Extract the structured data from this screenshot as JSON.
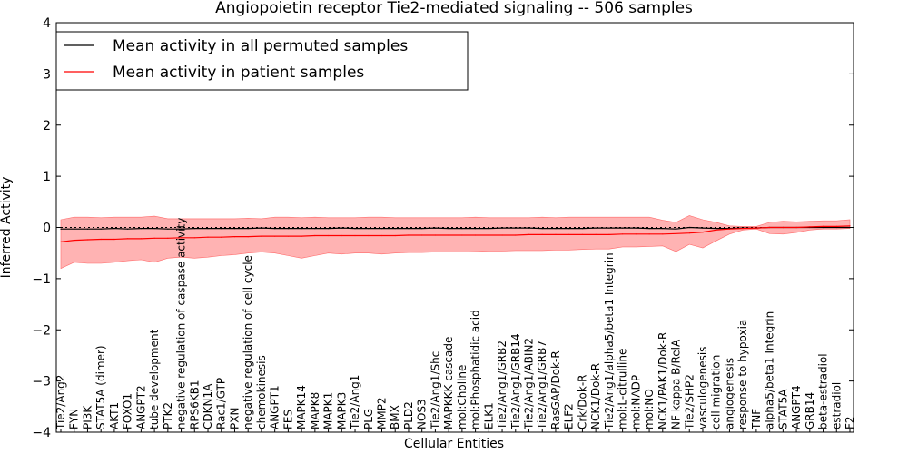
{
  "chart_data": {
    "type": "line",
    "title": "Angiopoietin receptor Tie2-mediated signaling -- 506 samples",
    "xlabel": "Cellular Entities",
    "ylabel": "Inferred Activity",
    "ylim": [
      -4,
      4
    ],
    "yticks": [
      "−4",
      "−3",
      "−2",
      "−1",
      "0",
      "1",
      "2",
      "3",
      "4"
    ],
    "colors": {
      "permuted": "#000000",
      "patient": "#ff0000",
      "band": "#ff9999"
    },
    "legend": {
      "position": "top-left",
      "permuted_label": "Mean activity in all permuted samples",
      "patient_label": "Mean activity in patient samples"
    },
    "categories": [
      "Tie2/Ang2",
      "FYN",
      "PI3K",
      "STAT5A (dimer)",
      "AKT1",
      "FOXO1",
      "ANGPT2",
      "tube development",
      "PTK2",
      "negative regulation of caspase activity",
      "RPS6KB1",
      "CDKN1A",
      "Rac1/GTP",
      "PXN",
      "negative regulation of cell cycle",
      "chemokinesis",
      "ANGPT1",
      "FES",
      "MAPK14",
      "MAPK8",
      "MAPK1",
      "MAPK3",
      "Tie2/Ang1",
      "PLG",
      "MMP2",
      "BMX",
      "PLD2",
      "NOS3",
      "Tie2/Ang1/Shc",
      "MAPKKK cascade",
      "mol:Choline",
      "mol:Phosphatidic acid",
      "ELK1",
      "Tie2/Ang1/GRB2",
      "Tie2/Ang1/GRB14",
      "Tie2/Ang1/ABIN2",
      "Tie2/Ang1/GRB7",
      "RasGAP/Dok-R",
      "ELF2",
      "Crk/Dok-R",
      "NCK1/Dok-R",
      "Tie2/Ang1/alpha5/beta1 Integrin",
      "mol:L-citrulline",
      "mol:NADP",
      "mol:NO",
      "NCK1/PAK1/Dok-R",
      "NF kappa B/RelA",
      "Tie2/SHP2",
      "vasculogenesis",
      "cell migration",
      "angiogenesis",
      "response to hypoxia",
      "TNF",
      "alpha5/beta1 Integrin",
      "STAT5A",
      "ANGPT4",
      "GRB14",
      "beta-estradiol",
      "estradiol",
      "F2"
    ],
    "series": [
      {
        "name": "Mean activity in all permuted samples",
        "values": [
          -0.03,
          -0.03,
          -0.03,
          -0.03,
          -0.02,
          -0.03,
          -0.02,
          -0.02,
          -0.03,
          -0.03,
          -0.02,
          -0.02,
          -0.02,
          -0.02,
          -0.02,
          -0.01,
          -0.02,
          -0.02,
          -0.02,
          -0.02,
          -0.02,
          -0.01,
          -0.02,
          -0.02,
          -0.02,
          -0.02,
          -0.02,
          -0.02,
          -0.01,
          -0.02,
          -0.02,
          -0.02,
          -0.02,
          -0.01,
          -0.01,
          -0.01,
          -0.02,
          -0.02,
          -0.02,
          -0.02,
          -0.01,
          -0.01,
          -0.01,
          -0.01,
          -0.02,
          -0.02,
          -0.03,
          0.0,
          -0.01,
          -0.02,
          -0.02,
          -0.01,
          -0.01,
          0.0,
          0.0,
          0.0,
          0.0,
          0.0,
          0.0,
          0.0
        ]
      },
      {
        "name": "Mean activity in patient samples",
        "values": [
          -0.28,
          -0.25,
          -0.24,
          -0.23,
          -0.23,
          -0.22,
          -0.22,
          -0.21,
          -0.21,
          -0.2,
          -0.2,
          -0.19,
          -0.19,
          -0.18,
          -0.18,
          -0.17,
          -0.17,
          -0.17,
          -0.17,
          -0.16,
          -0.16,
          -0.16,
          -0.16,
          -0.16,
          -0.16,
          -0.16,
          -0.15,
          -0.15,
          -0.15,
          -0.15,
          -0.15,
          -0.15,
          -0.15,
          -0.15,
          -0.15,
          -0.14,
          -0.14,
          -0.14,
          -0.14,
          -0.14,
          -0.14,
          -0.14,
          -0.13,
          -0.13,
          -0.13,
          -0.13,
          -0.12,
          -0.11,
          -0.09,
          -0.05,
          -0.03,
          -0.02,
          -0.01,
          0.0,
          0.0,
          0.0,
          0.01,
          0.02,
          0.02,
          0.03
        ]
      }
    ],
    "band": {
      "upper": [
        0.15,
        0.2,
        0.2,
        0.19,
        0.2,
        0.2,
        0.2,
        0.22,
        0.17,
        0.17,
        0.17,
        0.17,
        0.17,
        0.17,
        0.18,
        0.17,
        0.2,
        0.2,
        0.19,
        0.2,
        0.19,
        0.19,
        0.19,
        0.2,
        0.2,
        0.19,
        0.19,
        0.19,
        0.19,
        0.19,
        0.19,
        0.2,
        0.19,
        0.19,
        0.19,
        0.19,
        0.2,
        0.19,
        0.2,
        0.2,
        0.2,
        0.2,
        0.2,
        0.2,
        0.2,
        0.14,
        0.1,
        0.23,
        0.15,
        0.1,
        0.03,
        0.02,
        0.02,
        0.1,
        0.12,
        0.11,
        0.12,
        0.13,
        0.13,
        0.15
      ],
      "lower": [
        -0.8,
        -0.68,
        -0.7,
        -0.7,
        -0.68,
        -0.65,
        -0.63,
        -0.68,
        -0.6,
        -0.58,
        -0.6,
        -0.58,
        -0.55,
        -0.53,
        -0.5,
        -0.48,
        -0.5,
        -0.55,
        -0.6,
        -0.55,
        -0.5,
        -0.52,
        -0.5,
        -0.5,
        -0.52,
        -0.5,
        -0.49,
        -0.49,
        -0.48,
        -0.48,
        -0.48,
        -0.47,
        -0.46,
        -0.46,
        -0.45,
        -0.45,
        -0.45,
        -0.44,
        -0.44,
        -0.43,
        -0.42,
        -0.42,
        -0.38,
        -0.38,
        -0.37,
        -0.36,
        -0.47,
        -0.33,
        -0.4,
        -0.26,
        -0.13,
        -0.05,
        -0.03,
        -0.12,
        -0.13,
        -0.1,
        -0.05,
        -0.03,
        -0.03,
        -0.02
      ]
    }
  }
}
